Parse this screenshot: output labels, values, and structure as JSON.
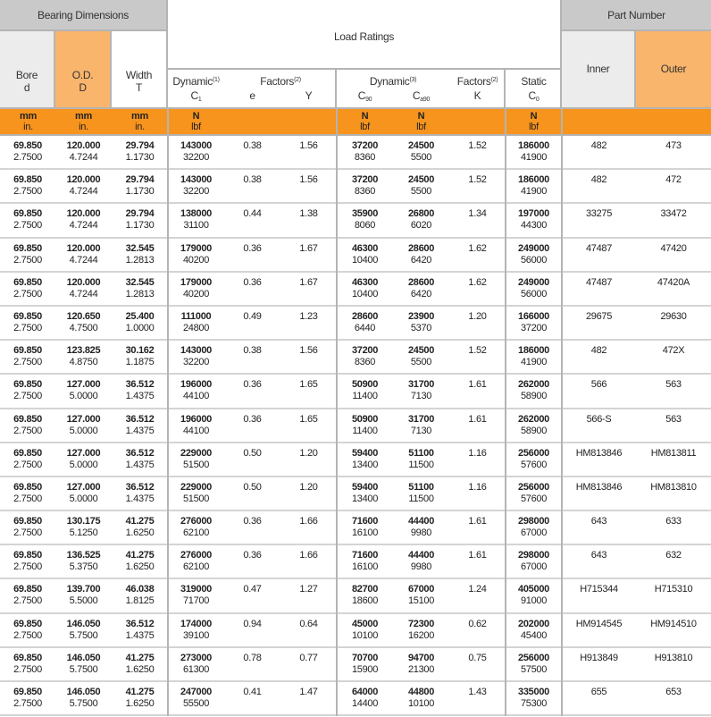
{
  "header": {
    "bearing_dimensions": "Bearing Dimensions",
    "bore": [
      "Bore",
      "d"
    ],
    "od": [
      "O.D.",
      "D"
    ],
    "width": [
      "Width",
      "T"
    ],
    "load_ratings": "Load Ratings",
    "dynamic1": "Dynamic",
    "dynamic1_sup": "(1)",
    "c1": "C",
    "c1_sub": "1",
    "factors1": "Factors",
    "factors1_sup": "(2)",
    "e": "e",
    "y": "Y",
    "dynamic3": "Dynamic",
    "dynamic3_sup": "(3)",
    "c90": "C",
    "c90_sub": "90",
    "ca90": "C",
    "ca90_sub": "a90",
    "factors2": "Factors",
    "factors2_sup": "(2)",
    "k": "K",
    "static": "Static",
    "c0": "C",
    "c0_sub": "0",
    "part_number": "Part Number",
    "inner": "Inner",
    "outer": "Outer"
  },
  "units": {
    "mm": "mm",
    "in": "in.",
    "n": "N",
    "lbf": "lbf"
  },
  "colors": {
    "orange": "#f7941d",
    "light_orange": "#f9b56c",
    "grey": "#c9c9ca",
    "light_grey": "#ececec"
  },
  "rows": [
    {
      "bore": [
        "69.850",
        "2.7500"
      ],
      "od": [
        "120.000",
        "4.7244"
      ],
      "width": [
        "29.794",
        "1.1730"
      ],
      "c1": [
        "143000",
        "32200"
      ],
      "e": "0.38",
      "y": "1.56",
      "c90": [
        "37200",
        "8360"
      ],
      "ca90": [
        "24500",
        "5500"
      ],
      "k": "1.52",
      "c0": [
        "186000",
        "41900"
      ],
      "inner": "482",
      "outer": "473"
    },
    {
      "bore": [
        "69.850",
        "2.7500"
      ],
      "od": [
        "120.000",
        "4.7244"
      ],
      "width": [
        "29.794",
        "1.1730"
      ],
      "c1": [
        "143000",
        "32200"
      ],
      "e": "0.38",
      "y": "1.56",
      "c90": [
        "37200",
        "8360"
      ],
      "ca90": [
        "24500",
        "5500"
      ],
      "k": "1.52",
      "c0": [
        "186000",
        "41900"
      ],
      "inner": "482",
      "outer": "472"
    },
    {
      "bore": [
        "69.850",
        "2.7500"
      ],
      "od": [
        "120.000",
        "4.7244"
      ],
      "width": [
        "29.794",
        "1.1730"
      ],
      "c1": [
        "138000",
        "31100"
      ],
      "e": "0.44",
      "y": "1.38",
      "c90": [
        "35900",
        "8060"
      ],
      "ca90": [
        "26800",
        "6020"
      ],
      "k": "1.34",
      "c0": [
        "197000",
        "44300"
      ],
      "inner": "33275",
      "outer": "33472"
    },
    {
      "bore": [
        "69.850",
        "2.7500"
      ],
      "od": [
        "120.000",
        "4.7244"
      ],
      "width": [
        "32.545",
        "1.2813"
      ],
      "c1": [
        "179000",
        "40200"
      ],
      "e": "0.36",
      "y": "1.67",
      "c90": [
        "46300",
        "10400"
      ],
      "ca90": [
        "28600",
        "6420"
      ],
      "k": "1.62",
      "c0": [
        "249000",
        "56000"
      ],
      "inner": "47487",
      "outer": "47420"
    },
    {
      "bore": [
        "69.850",
        "2.7500"
      ],
      "od": [
        "120.000",
        "4.7244"
      ],
      "width": [
        "32.545",
        "1.2813"
      ],
      "c1": [
        "179000",
        "40200"
      ],
      "e": "0.36",
      "y": "1.67",
      "c90": [
        "46300",
        "10400"
      ],
      "ca90": [
        "28600",
        "6420"
      ],
      "k": "1.62",
      "c0": [
        "249000",
        "56000"
      ],
      "inner": "47487",
      "outer": "47420A"
    },
    {
      "bore": [
        "69.850",
        "2.7500"
      ],
      "od": [
        "120.650",
        "4.7500"
      ],
      "width": [
        "25.400",
        "1.0000"
      ],
      "c1": [
        "111000",
        "24800"
      ],
      "e": "0.49",
      "y": "1.23",
      "c90": [
        "28600",
        "6440"
      ],
      "ca90": [
        "23900",
        "5370"
      ],
      "k": "1.20",
      "c0": [
        "166000",
        "37200"
      ],
      "inner": "29675",
      "outer": "29630"
    },
    {
      "bore": [
        "69.850",
        "2.7500"
      ],
      "od": [
        "123.825",
        "4.8750"
      ],
      "width": [
        "30.162",
        "1.1875"
      ],
      "c1": [
        "143000",
        "32200"
      ],
      "e": "0.38",
      "y": "1.56",
      "c90": [
        "37200",
        "8360"
      ],
      "ca90": [
        "24500",
        "5500"
      ],
      "k": "1.52",
      "c0": [
        "186000",
        "41900"
      ],
      "inner": "482",
      "outer": "472X"
    },
    {
      "bore": [
        "69.850",
        "2.7500"
      ],
      "od": [
        "127.000",
        "5.0000"
      ],
      "width": [
        "36.512",
        "1.4375"
      ],
      "c1": [
        "196000",
        "44100"
      ],
      "e": "0.36",
      "y": "1.65",
      "c90": [
        "50900",
        "11400"
      ],
      "ca90": [
        "31700",
        "7130"
      ],
      "k": "1.61",
      "c0": [
        "262000",
        "58900"
      ],
      "inner": "566",
      "outer": "563"
    },
    {
      "bore": [
        "69.850",
        "2.7500"
      ],
      "od": [
        "127.000",
        "5.0000"
      ],
      "width": [
        "36.512",
        "1.4375"
      ],
      "c1": [
        "196000",
        "44100"
      ],
      "e": "0.36",
      "y": "1.65",
      "c90": [
        "50900",
        "11400"
      ],
      "ca90": [
        "31700",
        "7130"
      ],
      "k": "1.61",
      "c0": [
        "262000",
        "58900"
      ],
      "inner": "566-S",
      "outer": "563"
    },
    {
      "bore": [
        "69.850",
        "2.7500"
      ],
      "od": [
        "127.000",
        "5.0000"
      ],
      "width": [
        "36.512",
        "1.4375"
      ],
      "c1": [
        "229000",
        "51500"
      ],
      "e": "0.50",
      "y": "1.20",
      "c90": [
        "59400",
        "13400"
      ],
      "ca90": [
        "51100",
        "11500"
      ],
      "k": "1.16",
      "c0": [
        "256000",
        "57600"
      ],
      "inner": "HM813846",
      "outer": "HM813811"
    },
    {
      "bore": [
        "69.850",
        "2.7500"
      ],
      "od": [
        "127.000",
        "5.0000"
      ],
      "width": [
        "36.512",
        "1.4375"
      ],
      "c1": [
        "229000",
        "51500"
      ],
      "e": "0.50",
      "y": "1.20",
      "c90": [
        "59400",
        "13400"
      ],
      "ca90": [
        "51100",
        "11500"
      ],
      "k": "1.16",
      "c0": [
        "256000",
        "57600"
      ],
      "inner": "HM813846",
      "outer": "HM813810"
    },
    {
      "bore": [
        "69.850",
        "2.7500"
      ],
      "od": [
        "130.175",
        "5.1250"
      ],
      "width": [
        "41.275",
        "1.6250"
      ],
      "c1": [
        "276000",
        "62100"
      ],
      "e": "0.36",
      "y": "1.66",
      "c90": [
        "71600",
        "16100"
      ],
      "ca90": [
        "44400",
        "9980"
      ],
      "k": "1.61",
      "c0": [
        "298000",
        "67000"
      ],
      "inner": "643",
      "outer": "633"
    },
    {
      "bore": [
        "69.850",
        "2.7500"
      ],
      "od": [
        "136.525",
        "5.3750"
      ],
      "width": [
        "41.275",
        "1.6250"
      ],
      "c1": [
        "276000",
        "62100"
      ],
      "e": "0.36",
      "y": "1.66",
      "c90": [
        "71600",
        "16100"
      ],
      "ca90": [
        "44400",
        "9980"
      ],
      "k": "1.61",
      "c0": [
        "298000",
        "67000"
      ],
      "inner": "643",
      "outer": "632"
    },
    {
      "bore": [
        "69.850",
        "2.7500"
      ],
      "od": [
        "139.700",
        "5.5000"
      ],
      "width": [
        "46.038",
        "1.8125"
      ],
      "c1": [
        "319000",
        "71700"
      ],
      "e": "0.47",
      "y": "1.27",
      "c90": [
        "82700",
        "18600"
      ],
      "ca90": [
        "67000",
        "15100"
      ],
      "k": "1.24",
      "c0": [
        "405000",
        "91000"
      ],
      "inner": "H715344",
      "outer": "H715310"
    },
    {
      "bore": [
        "69.850",
        "2.7500"
      ],
      "od": [
        "146.050",
        "5.7500"
      ],
      "width": [
        "36.512",
        "1.4375"
      ],
      "c1": [
        "174000",
        "39100"
      ],
      "e": "0.94",
      "y": "0.64",
      "c90": [
        "45000",
        "10100"
      ],
      "ca90": [
        "72300",
        "16200"
      ],
      "k": "0.62",
      "c0": [
        "202000",
        "45400"
      ],
      "inner": "HM914545",
      "outer": "HM914510"
    },
    {
      "bore": [
        "69.850",
        "2.7500"
      ],
      "od": [
        "146.050",
        "5.7500"
      ],
      "width": [
        "41.275",
        "1.6250"
      ],
      "c1": [
        "273000",
        "61300"
      ],
      "e": "0.78",
      "y": "0.77",
      "c90": [
        "70700",
        "15900"
      ],
      "ca90": [
        "94700",
        "21300"
      ],
      "k": "0.75",
      "c0": [
        "256000",
        "57500"
      ],
      "inner": "H913849",
      "outer": "H913810"
    },
    {
      "bore": [
        "69.850",
        "2.7500"
      ],
      "od": [
        "146.050",
        "5.7500"
      ],
      "width": [
        "41.275",
        "1.6250"
      ],
      "c1": [
        "247000",
        "55500"
      ],
      "e": "0.41",
      "y": "1.47",
      "c90": [
        "64000",
        "14400"
      ],
      "ca90": [
        "44800",
        "10100"
      ],
      "k": "1.43",
      "c0": [
        "335000",
        "75300"
      ],
      "inner": "655",
      "outer": "653"
    }
  ]
}
